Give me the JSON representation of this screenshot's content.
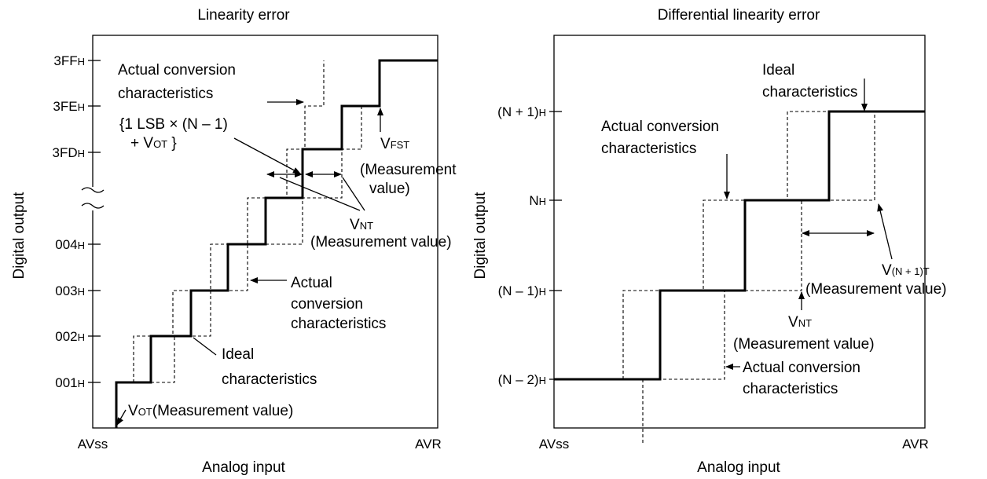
{
  "left": {
    "title": "Linearity error",
    "y_label": "Digital output",
    "x_label": "Analog input",
    "x_start": "AVss",
    "x_end": "AVR",
    "ticks": [
      [
        "3FF",
        {
          "sub": "H"
        }
      ],
      [
        "3FE",
        {
          "sub": "H"
        }
      ],
      [
        "3FD",
        {
          "sub": "H"
        }
      ],
      [
        "004",
        {
          "sub": "H"
        }
      ],
      [
        "003",
        {
          "sub": "H"
        }
      ],
      [
        "002",
        {
          "sub": "H"
        }
      ],
      [
        "001",
        {
          "sub": "H"
        }
      ]
    ],
    "notes": [
      [
        "Actual conversion"
      ],
      [
        "characteristics"
      ],
      [
        "{1 LSB × (N – 1)"
      ],
      [
        "+ V",
        {
          "sub": "OT"
        },
        " }"
      ],
      [
        "V",
        {
          "sub": "FST"
        }
      ],
      [
        "(Measurement"
      ],
      [
        "value)"
      ],
      [
        "V",
        {
          "sub": "NT"
        }
      ],
      [
        "(Measurement value)"
      ],
      [
        "Actual"
      ],
      [
        "conversion"
      ],
      [
        "characteristics"
      ],
      [
        "Ideal"
      ],
      [
        "characteristics"
      ],
      [
        "V",
        {
          "sub": "OT"
        },
        "(Measurement value)"
      ]
    ]
  },
  "right": {
    "title": "Differential linearity error",
    "y_label": "Digital output",
    "x_label": "Analog input",
    "x_start": "AVss",
    "x_end": "AVR",
    "ticks": [
      [
        "(N + 1)",
        {
          "sub": "H"
        }
      ],
      [
        "N",
        {
          "sub": "H"
        }
      ],
      [
        "(N – 1)",
        {
          "sub": "H"
        }
      ],
      [
        "(N – 2)",
        {
          "sub": "H"
        }
      ]
    ],
    "notes": [
      [
        "Ideal"
      ],
      [
        "characteristics"
      ],
      [
        "Actual conversion"
      ],
      [
        "characteristics"
      ],
      [
        "V",
        {
          "sub": "(N + 1)T"
        }
      ],
      [
        "(Measurement value)"
      ],
      [
        "V",
        {
          "sub": "NT"
        }
      ],
      [
        "(Measurement value)"
      ],
      [
        "Actual conversion"
      ],
      [
        "characteristics"
      ]
    ]
  }
}
